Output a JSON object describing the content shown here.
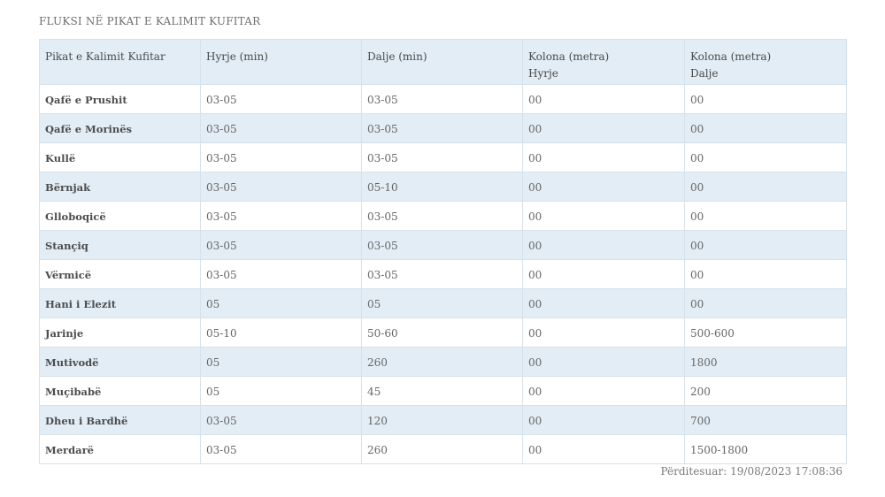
{
  "title": "FLUKSI NË PIKAT E KALIMIT KUFITAR",
  "table": {
    "headers": [
      {
        "line1": "Pikat e Kalimit Kufitar",
        "line2": ""
      },
      {
        "line1": "Hyrje (min)",
        "line2": ""
      },
      {
        "line1": "Dalje (min)",
        "line2": ""
      },
      {
        "line1": "Kolona (metra)",
        "line2": "Hyrje"
      },
      {
        "line1": "Kolona (metra)",
        "line2": "Dalje"
      }
    ],
    "rows": [
      [
        "Qafë e Prushit",
        "03-05",
        "03-05",
        "00",
        "00"
      ],
      [
        "Qafë e Morinës",
        "03-05",
        "03-05",
        "00",
        "00"
      ],
      [
        "Kullë",
        "03-05",
        "03-05",
        "00",
        "00"
      ],
      [
        "Bërnjak",
        "03-05",
        "05-10",
        "00",
        "00"
      ],
      [
        "Glloboqicë",
        "03-05",
        "03-05",
        "00",
        "00"
      ],
      [
        "Stançiq",
        "03-05",
        "03-05",
        "00",
        "00"
      ],
      [
        "Vërmicë",
        "03-05",
        "03-05",
        "00",
        "00"
      ],
      [
        "Hani i Elezit",
        "05",
        "05",
        "00",
        "00"
      ],
      [
        "Jarinje",
        "05-10",
        "50-60",
        "00",
        "500-600"
      ],
      [
        "Mutivodë",
        "05",
        "260",
        "00",
        "1800"
      ],
      [
        "Muçibabë",
        "05",
        "45",
        "00",
        "200"
      ],
      [
        "Dheu i Bardhë",
        "03-05",
        "120",
        "00",
        "700"
      ],
      [
        "Merdarë",
        "03-05",
        "260",
        "00",
        "1500-1800"
      ]
    ]
  },
  "footer": {
    "updated_label": "Përditesuar:",
    "updated_value": "19/08/2023 17:08:36"
  }
}
